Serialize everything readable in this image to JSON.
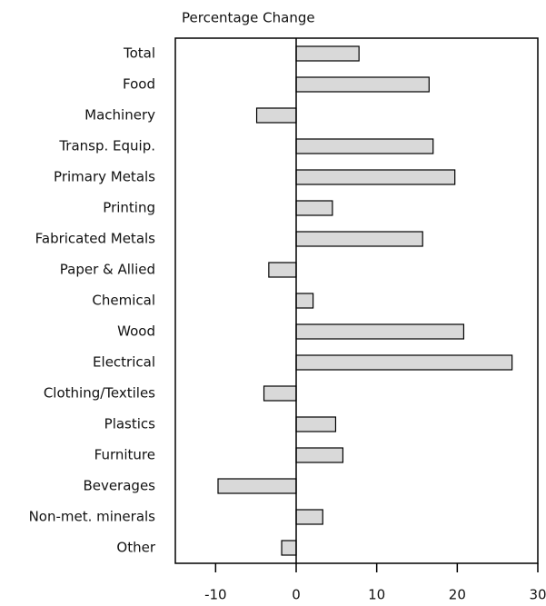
{
  "chart_data": {
    "type": "bar",
    "orientation": "horizontal",
    "title": "Percentage Change",
    "categories": [
      "Total",
      "Food",
      "Machinery",
      "Transp. Equip.",
      "Primary Metals",
      "Printing",
      "Fabricated Metals",
      "Paper & Allied",
      "Chemical",
      "Wood",
      "Electrical",
      "Clothing/Textiles",
      "Plastics",
      "Furniture",
      "Beverages",
      "Non-met. minerals",
      "Other"
    ],
    "values": [
      7.8,
      16.5,
      -4.9,
      17,
      19.7,
      4.5,
      15.7,
      -3.4,
      2.1,
      20.8,
      26.8,
      -4,
      4.9,
      5.8,
      -9.7,
      3.3,
      -1.8
    ],
    "color": "#d9d9d9",
    "xlim": [
      -15,
      30
    ],
    "xticks": [
      -10,
      0,
      10,
      20,
      30
    ]
  }
}
